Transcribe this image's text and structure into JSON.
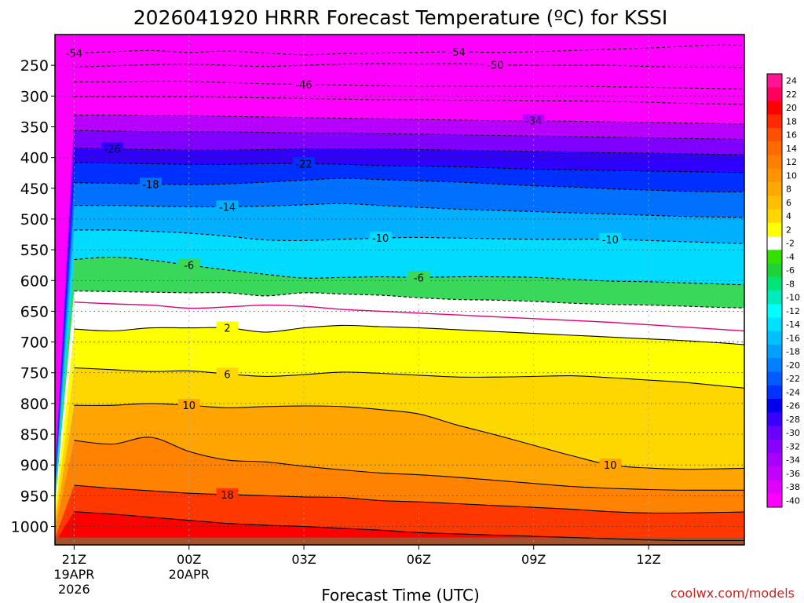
{
  "chart_data": {
    "type": "heatmap",
    "title": "2026041920 HRRR Forecast Temperature (ºC) for KSSI",
    "xlabel": "Forecast Time (UTC)",
    "ylabel": "",
    "credit": "coolwx.com/models",
    "x_range_hours": [
      -0.5,
      17.5
    ],
    "y_range_hpa": [
      200,
      1030
    ],
    "x_ticks": [
      {
        "hour": 0,
        "lines": [
          "21Z",
          "19APR",
          "2026"
        ]
      },
      {
        "hour": 3,
        "lines": [
          "00Z",
          "20APR"
        ]
      },
      {
        "hour": 6,
        "lines": [
          "03Z"
        ]
      },
      {
        "hour": 9,
        "lines": [
          "06Z"
        ]
      },
      {
        "hour": 12,
        "lines": [
          "09Z"
        ]
      },
      {
        "hour": 15,
        "lines": [
          "12Z"
        ]
      }
    ],
    "y_ticks": [
      250,
      300,
      350,
      400,
      450,
      500,
      550,
      600,
      650,
      700,
      750,
      800,
      850,
      900,
      950,
      1000
    ],
    "colorbar_labels": [
      "24",
      "22",
      "20",
      "18",
      "16",
      "14",
      "12",
      "10",
      "8",
      "6",
      "4",
      "2",
      "-2",
      "-4",
      "-6",
      "-8",
      "-10",
      "-12",
      "-14",
      "-16",
      "-18",
      "-20",
      "-22",
      "-24",
      "-26",
      "-28",
      "-30",
      "-32",
      "-34",
      "-36",
      "-38",
      "-40"
    ],
    "colorbar_colors": [
      "#ff1493",
      "#ff0060",
      "#ff0000",
      "#ff2a00",
      "#ff5000",
      "#ff6a00",
      "#ff7f00",
      "#ff9400",
      "#ffa800",
      "#ffbe00",
      "#ffd700",
      "#ffff00",
      "#ffffff",
      "#34e000",
      "#1fd23a",
      "#00e47a",
      "#00ebba",
      "#00ffff",
      "#00e0ff",
      "#00c0ff",
      "#00a0ff",
      "#0080ff",
      "#005cff",
      "#0033ff",
      "#0000ee",
      "#3a00ff",
      "#6a00ff",
      "#8a00ff",
      "#a800ff",
      "#c400ff",
      "#e000ff",
      "#ff00ff"
    ],
    "freezing_line_hpa": [
      635,
      638,
      640,
      645,
      643,
      640,
      642,
      647,
      650,
      653,
      656,
      659,
      662,
      665,
      668,
      672,
      676,
      680,
      684
    ],
    "series": [
      {
        "name": "-54",
        "values": [
          230,
          228,
          226,
          229,
          227,
          230,
          233,
          231,
          230,
          229,
          228,
          229,
          228,
          226,
          224,
          222,
          219,
          217,
          219
        ]
      },
      {
        "name": "-50",
        "values": [
          253,
          251,
          249,
          248,
          250,
          252,
          250,
          248,
          247,
          248,
          247,
          249,
          250,
          250,
          250,
          252,
          253,
          253,
          255
        ]
      },
      {
        "name": "-46",
        "values": [
          277,
          277,
          276,
          276,
          278,
          280,
          281,
          282,
          283,
          284,
          284,
          284,
          284,
          284,
          285,
          286,
          287,
          288,
          289
        ]
      },
      {
        "name": "-42",
        "values": [
          301,
          301,
          301,
          301,
          302,
          303,
          304,
          305,
          306,
          306,
          307,
          307,
          308,
          308,
          309,
          310,
          312,
          313,
          314
        ]
      },
      {
        "name": "-34",
        "values": [
          331,
          331,
          332,
          332,
          333,
          334,
          335,
          336,
          337,
          338,
          339,
          340,
          340,
          341,
          342,
          343,
          344,
          345,
          346
        ]
      },
      {
        "name": "-30",
        "values": [
          356,
          357,
          358,
          358,
          358,
          359,
          360,
          360,
          361,
          362,
          363,
          364,
          365,
          366,
          367,
          368,
          369,
          370,
          371
        ]
      },
      {
        "name": "-26",
        "values": [
          385,
          386,
          387,
          388,
          388,
          387,
          386,
          386,
          386,
          387,
          388,
          389,
          390,
          391,
          392,
          393,
          394,
          395,
          396
        ]
      },
      {
        "name": "-22",
        "values": [
          408,
          409,
          410,
          411,
          411,
          410,
          410,
          411,
          413,
          414,
          415,
          417,
          419,
          420,
          421,
          422,
          423,
          424,
          425
        ]
      },
      {
        "name": "-18",
        "values": [
          441,
          442,
          443,
          444,
          443,
          440,
          437,
          434,
          436,
          438,
          440,
          443,
          446,
          448,
          451,
          453,
          455,
          456,
          455
        ]
      },
      {
        "name": "-14",
        "values": [
          478,
          478,
          479,
          480,
          480,
          479,
          477,
          475,
          478,
          481,
          484,
          486,
          488,
          490,
          492,
          494,
          496,
          497,
          498
        ]
      },
      {
        "name": "-10",
        "values": [
          518,
          518,
          520,
          523,
          528,
          534,
          535,
          533,
          531,
          530,
          531,
          532,
          533,
          533,
          533,
          535,
          537,
          539,
          541
        ]
      },
      {
        "name": "-6",
        "values": [
          566,
          562,
          567,
          575,
          583,
          590,
          596,
          595,
          594,
          595,
          594,
          594,
          595,
          598,
          601,
          602,
          604,
          606,
          608
        ]
      },
      {
        "name": "-2",
        "values": [
          617,
          618,
          619,
          620,
          620,
          625,
          620,
          622,
          624,
          628,
          631,
          632,
          634,
          637,
          639,
          640,
          642,
          644,
          645
        ]
      },
      {
        "name": "2",
        "values": [
          679,
          682,
          677,
          677,
          677,
          684,
          677,
          673,
          675,
          677,
          680,
          683,
          686,
          689,
          692,
          695,
          698,
          702,
          707
        ]
      },
      {
        "name": "6",
        "values": [
          742,
          745,
          748,
          747,
          752,
          756,
          753,
          749,
          751,
          754,
          757,
          757,
          756,
          755,
          758,
          762,
          766,
          772,
          778
        ]
      },
      {
        "name": "10",
        "values": [
          803,
          803,
          800,
          803,
          807,
          805,
          804,
          805,
          810,
          817,
          835,
          851,
          868,
          885,
          900,
          905,
          907,
          906,
          905
        ]
      },
      {
        "name": "14",
        "values": [
          860,
          866,
          855,
          878,
          892,
          895,
          902,
          908,
          913,
          916,
          920,
          925,
          930,
          935,
          938,
          940,
          941,
          941,
          941
        ]
      },
      {
        "name": "18",
        "values": [
          933,
          938,
          942,
          946,
          948,
          950,
          952,
          953,
          958,
          960,
          963,
          966,
          969,
          972,
          976,
          978,
          978,
          977,
          976
        ]
      },
      {
        "name": "22",
        "values": [
          976,
          980,
          985,
          990,
          995,
          998,
          1000,
          1003,
          1006,
          1010,
          1012,
          1014,
          1016,
          1018,
          1020,
          1022,
          1023,
          1023,
          1023
        ]
      }
    ]
  }
}
